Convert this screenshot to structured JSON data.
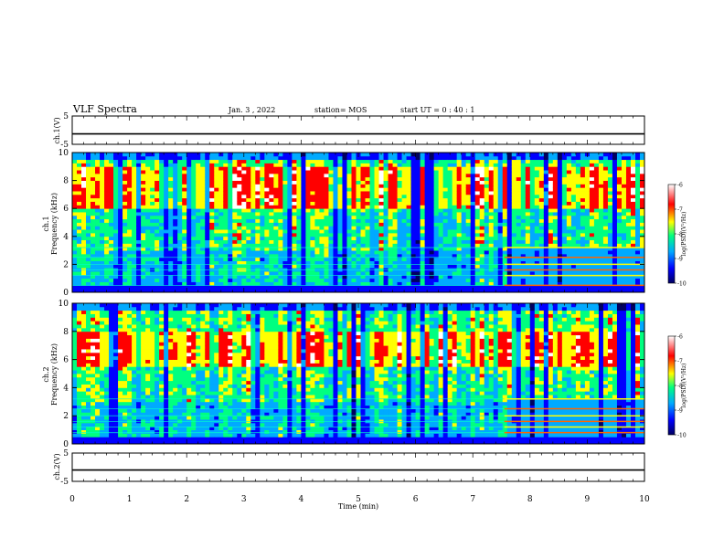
{
  "header": {
    "title": "VLF Spectra",
    "date": "Jan. 3 , 2022",
    "station": "station= MOS",
    "start_ut": "start UT = 0 : 40 : 1"
  },
  "x_axis": {
    "label": "Time (min)",
    "range": [
      0,
      10
    ],
    "ticks": [
      "0",
      "1",
      "2",
      "3",
      "4",
      "5",
      "6",
      "7",
      "8",
      "9",
      "10"
    ]
  },
  "panels": {
    "ch1v": {
      "label": "ch.1(V)",
      "ticks": [
        "5",
        "-5"
      ],
      "range": [
        -5,
        5
      ]
    },
    "spec1": {
      "label": "ch.1",
      "ylabel": "Frequency (kHz)",
      "ticks": [
        "0",
        "2",
        "4",
        "6",
        "8",
        "10"
      ],
      "range": [
        0,
        10
      ]
    },
    "spec2": {
      "label": "ch.2",
      "ylabel": "Frequency (kHz)",
      "ticks": [
        "0",
        "2",
        "4",
        "6",
        "8",
        "10"
      ],
      "range": [
        0,
        10
      ]
    },
    "ch2v": {
      "label": "ch.2(V)",
      "ticks": [
        "5",
        "-5"
      ],
      "range": [
        -5,
        5
      ]
    }
  },
  "colorbar": {
    "label": "log(PSD)(V²/Hz)",
    "ticks": [
      "-6",
      "-7",
      "-8",
      "-9",
      "-10"
    ],
    "range": [
      -10,
      -6
    ],
    "colors": [
      "#000060",
      "#0000ff",
      "#00aaff",
      "#00ff80",
      "#ffff00",
      "#ff0000",
      "#ffffff"
    ]
  },
  "chart_data": [
    {
      "type": "line",
      "name": "ch1-waveform",
      "ylabel": "ch.1(V)",
      "x": [
        0,
        10
      ],
      "y": [
        -1.3,
        -1.3
      ],
      "xlim": [
        0,
        10
      ],
      "ylim": [
        -5,
        5
      ]
    },
    {
      "type": "heatmap",
      "name": "ch1-spectrogram",
      "ylabel": "Frequency (kHz)",
      "xlim": [
        0,
        10
      ],
      "ylim": [
        0,
        10
      ],
      "zlim": [
        -10,
        -6
      ],
      "features": {
        "dominant_band_khz": [
          6,
          9
        ],
        "horizontal_lines_khz_after_7_6min": [
          0.5,
          1.2,
          1.6,
          2.0,
          2.5,
          3.2
        ]
      }
    },
    {
      "type": "heatmap",
      "name": "ch2-spectrogram",
      "ylabel": "Frequency (kHz)",
      "xlim": [
        0,
        10
      ],
      "ylim": [
        0,
        10
      ],
      "zlim": [
        -10,
        -6
      ],
      "features": {
        "dominant_band_khz": [
          5.5,
          8
        ],
        "horizontal_lines_khz_after_7_6min": [
          0.8,
          1.2,
          1.6,
          2.0,
          2.5,
          3.2
        ]
      }
    },
    {
      "type": "line",
      "name": "ch2-waveform",
      "ylabel": "ch.2(V)",
      "x": [
        0,
        10
      ],
      "y": [
        -1.0,
        -1.0
      ],
      "xlim": [
        0,
        10
      ],
      "ylim": [
        -5,
        5
      ]
    }
  ]
}
